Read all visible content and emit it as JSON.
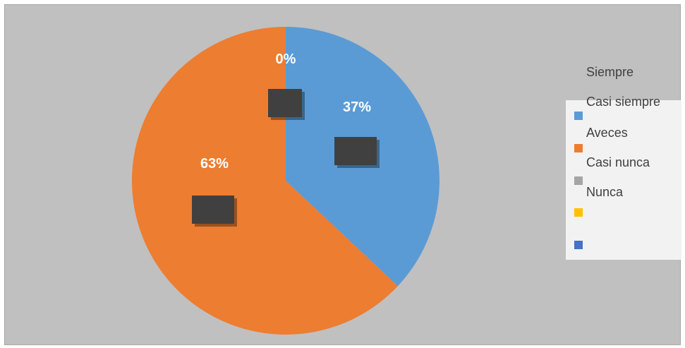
{
  "chart_data": {
    "type": "pie",
    "categories": [
      "Siempre",
      "Casi siempre",
      "Aveces",
      "Casi nunca",
      "Nunca"
    ],
    "values": [
      37,
      63,
      0,
      0,
      0
    ],
    "data_labels": [
      "37%",
      "63%",
      "0%",
      "",
      ""
    ],
    "colors": [
      "#5b9bd5",
      "#ed7d31",
      "#a5a5a5",
      "#ffc000",
      "#4472c4"
    ],
    "legend_position": "right",
    "title": ""
  },
  "legend": {
    "entries": [
      "Siempre",
      "Casi siempre",
      "Aveces",
      "Casi nunca",
      "Nunca"
    ]
  }
}
